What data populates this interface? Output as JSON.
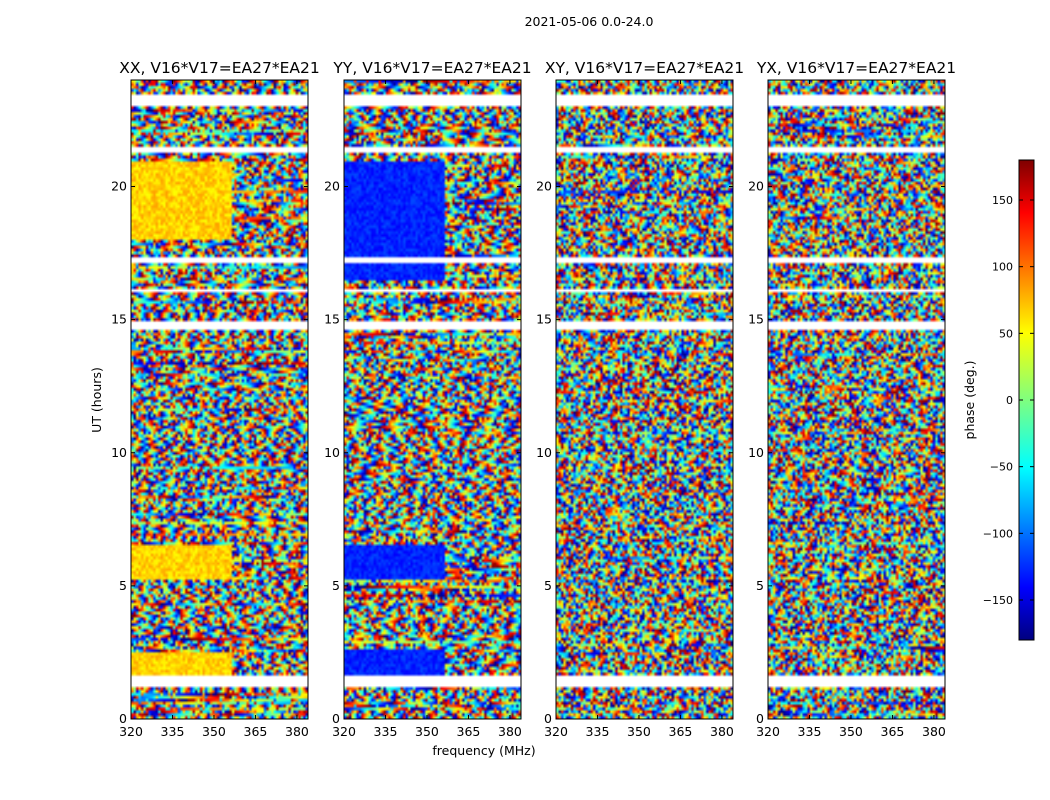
{
  "suptitle": "2021-05-06 0.0-24.0",
  "chart_data": {
    "type": "heatmap",
    "panels": [
      {
        "title": "XX, V16*V17=EA27*EA21"
      },
      {
        "title": "YY, V16*V17=EA27*EA21"
      },
      {
        "title": "XY, V16*V17=EA27*EA21"
      },
      {
        "title": "YX, V16*V17=EA27*EA21"
      }
    ],
    "xlabel": "frequency (MHz)",
    "ylabel": "UT (hours)",
    "xlim": [
      320,
      384
    ],
    "ylim": [
      0,
      24
    ],
    "xticks": [
      320,
      335,
      350,
      365,
      380
    ],
    "yticks": [
      0,
      5,
      10,
      15,
      20
    ],
    "colorbar": {
      "label": "phase (deg.)",
      "range": [
        -180,
        180
      ],
      "ticks": [
        -150,
        -100,
        -50,
        0,
        50,
        100,
        150
      ],
      "colormap": [
        "#00007f",
        "#0000ff",
        "#007fff",
        "#00ffff",
        "#7fff7f",
        "#ffff00",
        "#ff7f00",
        "#ff0000",
        "#7f0000"
      ]
    },
    "gap_bands_hours": [
      [
        1.2,
        1.5
      ],
      [
        1.55,
        1.6
      ],
      [
        14.6,
        14.9
      ],
      [
        16.0,
        16.2
      ],
      [
        17.1,
        17.3
      ],
      [
        21.3,
        21.5
      ],
      [
        23.0,
        23.3
      ],
      [
        23.4,
        23.5
      ]
    ]
  }
}
